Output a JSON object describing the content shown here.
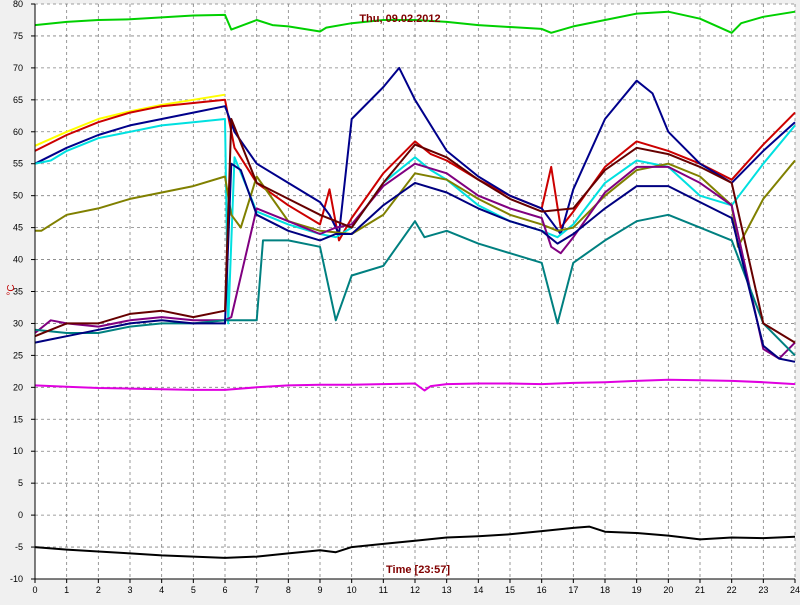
{
  "chart_data": {
    "type": "line",
    "title": "Thu, 09.02.2012",
    "xlabel": "Time [23:57]",
    "ylabel": "°C",
    "xlim": [
      0,
      24
    ],
    "ylim": [
      -10,
      80
    ],
    "x_ticks": [
      0,
      1,
      2,
      3,
      4,
      5,
      6,
      7,
      8,
      9,
      10,
      11,
      12,
      13,
      14,
      15,
      16,
      17,
      18,
      19,
      20,
      21,
      22,
      23,
      24
    ],
    "y_ticks": [
      -10,
      -5,
      0,
      5,
      10,
      15,
      20,
      25,
      30,
      35,
      40,
      45,
      50,
      55,
      60,
      65,
      70,
      75,
      80
    ],
    "grid": true,
    "series": [
      {
        "color": "#00d000",
        "x": [
          0,
          1,
          2,
          3,
          4,
          5,
          6,
          6.2,
          7,
          7.5,
          8,
          9,
          9.2,
          10,
          11,
          12,
          13,
          14,
          15,
          16,
          16.3,
          17,
          18,
          19,
          20,
          21,
          22,
          22.3,
          23,
          24
        ],
        "y": [
          76.7,
          77.2,
          77.5,
          77.6,
          77.9,
          78.2,
          78.3,
          76,
          77.5,
          76.7,
          76.5,
          75.7,
          76.3,
          77,
          77.5,
          77.5,
          77.2,
          76.7,
          76.4,
          76.1,
          75.5,
          76.5,
          77.5,
          78.5,
          78.8,
          77.7,
          75.5,
          77,
          78,
          78.8
        ]
      },
      {
        "color": "#ffff00",
        "x": [
          0,
          1,
          2,
          3,
          4,
          5,
          6
        ],
        "y": [
          57.8,
          60,
          62,
          63.2,
          64.2,
          65,
          65.8
        ]
      },
      {
        "color": "#cc0000",
        "x": [
          0,
          1,
          2,
          3,
          4,
          5,
          6,
          6.3,
          7,
          8,
          9,
          9.3,
          9.6,
          10,
          11,
          12,
          12.5,
          13,
          14,
          15,
          16,
          16.3,
          16.6,
          17,
          18,
          19,
          20,
          21,
          22,
          23,
          24
        ],
        "y": [
          57,
          59.5,
          61.5,
          63,
          64,
          64.5,
          65,
          57.5,
          52,
          48.5,
          45.5,
          51,
          43,
          46.5,
          53.5,
          58.5,
          56.5,
          55.5,
          52.5,
          50,
          48,
          54.5,
          45,
          47.5,
          54.5,
          58.5,
          57,
          55,
          52.5,
          58,
          63
        ]
      },
      {
        "color": "#00008b",
        "x": [
          0,
          1,
          2,
          3,
          4,
          5,
          6,
          6.3,
          7,
          8,
          9,
          9.3,
          9.6,
          10,
          11,
          11.5,
          12,
          13,
          14,
          15,
          16,
          16.3,
          16.6,
          17,
          18,
          19,
          19.5,
          20,
          21,
          22,
          23,
          24
        ],
        "y": [
          55,
          57.5,
          59.5,
          61,
          62,
          63,
          64,
          60,
          55,
          52,
          49,
          47,
          44,
          62,
          67,
          70,
          65,
          57,
          53,
          50,
          48,
          46,
          44,
          51,
          62,
          68,
          66,
          60,
          55,
          52,
          57,
          61.5
        ]
      },
      {
        "color": "#00e0e0",
        "x": [
          0,
          0.5,
          1,
          2,
          3,
          4,
          5,
          6,
          6.1,
          6.3,
          7,
          8,
          9,
          9.5,
          10,
          11,
          12,
          12.5,
          13,
          14,
          15,
          16,
          16.5,
          17,
          18,
          19,
          20,
          21,
          22,
          23,
          24
        ],
        "y": [
          55,
          55.5,
          57,
          59,
          60,
          61,
          61.5,
          62,
          30,
          56,
          47.5,
          45.5,
          44,
          43.5,
          45,
          52,
          56,
          54,
          52.5,
          48.5,
          46,
          44.5,
          43.5,
          45.5,
          52,
          55.5,
          54.5,
          50,
          48.5,
          55,
          61
        ]
      },
      {
        "color": "#808000",
        "x": [
          0,
          0.2,
          1,
          2,
          3,
          4,
          5,
          6,
          6.2,
          6.5,
          7,
          8,
          9,
          10,
          11,
          12,
          13,
          14,
          15,
          16,
          16.5,
          17,
          18,
          19,
          20,
          21,
          22,
          22.2,
          23,
          24
        ],
        "y": [
          44.5,
          44.5,
          47,
          48,
          49.5,
          50.5,
          51.5,
          53,
          47,
          45,
          53,
          46,
          44.5,
          44,
          47,
          53.5,
          52.5,
          49.5,
          47,
          45.5,
          44.5,
          45,
          50,
          54,
          55,
          53,
          48.5,
          42,
          49.5,
          55.5
        ]
      },
      {
        "color": "#800080",
        "x": [
          0,
          0.5,
          1,
          2,
          3,
          4,
          5,
          6,
          6.2,
          7,
          8,
          9,
          9.5,
          10,
          11,
          12,
          13,
          14,
          15,
          16,
          16.3,
          16.6,
          17,
          18,
          19,
          20,
          21,
          22,
          23,
          23.5,
          24
        ],
        "y": [
          28.5,
          30.5,
          30,
          29.5,
          30.5,
          31,
          30.5,
          30.5,
          31,
          48,
          46,
          44,
          45,
          45.5,
          51.5,
          55,
          53.5,
          50,
          48,
          46.5,
          42,
          41,
          43.5,
          50.5,
          54.5,
          54.5,
          52,
          48.5,
          26,
          24.5,
          27
        ]
      },
      {
        "color": "#008080",
        "x": [
          0,
          1,
          2,
          3,
          4,
          5,
          6,
          7,
          7.2,
          8,
          9,
          9.5,
          10,
          11,
          12,
          12.3,
          13,
          14,
          15,
          16,
          16.5,
          17,
          18,
          19,
          20,
          21,
          22,
          23,
          24
        ],
        "y": [
          29,
          28.5,
          28.5,
          29.5,
          30,
          30,
          30.5,
          30.5,
          43,
          43,
          42,
          30.5,
          37.5,
          39,
          46,
          43.5,
          44.5,
          42.5,
          41,
          39.5,
          30,
          39.5,
          43,
          46,
          47,
          45,
          43,
          30,
          25
        ]
      },
      {
        "color": "#000080",
        "x": [
          0,
          0.5,
          1,
          2,
          3,
          4,
          5,
          6,
          6.2,
          6.5,
          7,
          8,
          9,
          9.5,
          10,
          11,
          12,
          13,
          14,
          15,
          16,
          16.5,
          17,
          18,
          19,
          20,
          21,
          22,
          23,
          23.5,
          24
        ],
        "y": [
          27,
          27.5,
          28,
          29,
          30,
          30.5,
          30,
          30,
          55,
          54,
          47,
          44.5,
          43,
          44,
          44,
          48.5,
          52,
          50.5,
          48,
          46,
          44.5,
          42.5,
          44,
          48,
          51.5,
          51.5,
          49,
          46.5,
          26.5,
          24.5,
          24
        ]
      },
      {
        "color": "#660000",
        "x": [
          0,
          0.5,
          1,
          2,
          3,
          4,
          5,
          6,
          6.2,
          7,
          8,
          9,
          10,
          11,
          12,
          13,
          14,
          15,
          16,
          17,
          18,
          19,
          20,
          21,
          22,
          23,
          24
        ],
        "y": [
          28,
          29,
          30,
          30,
          31.5,
          32,
          31,
          32,
          62,
          52,
          49.5,
          47,
          45,
          52,
          58,
          56,
          52.5,
          49.5,
          47.5,
          48,
          54,
          57.5,
          56.5,
          54.5,
          52,
          30,
          27
        ]
      },
      {
        "color": "#e000e0",
        "x": [
          0,
          1,
          2,
          3,
          4,
          5,
          6,
          7,
          8,
          9,
          10,
          11,
          12,
          12.3,
          12.5,
          13,
          14,
          15,
          16,
          17,
          18,
          19,
          20,
          21,
          22,
          23,
          24
        ],
        "y": [
          20.3,
          20.1,
          19.9,
          19.8,
          19.7,
          19.6,
          19.6,
          20,
          20.3,
          20.4,
          20.4,
          20.5,
          20.6,
          19.5,
          20.2,
          20.5,
          20.6,
          20.6,
          20.5,
          20.7,
          20.8,
          21,
          21.2,
          21.1,
          21,
          20.8,
          20.5
        ]
      },
      {
        "color": "#000000",
        "x": [
          0,
          1,
          2,
          3,
          4,
          5,
          6,
          7,
          8,
          9,
          9.5,
          10,
          11,
          12,
          13,
          14,
          15,
          16,
          17,
          17.5,
          18,
          19,
          20,
          21,
          22,
          23,
          24
        ],
        "y": [
          -5,
          -5.4,
          -5.7,
          -6,
          -6.3,
          -6.5,
          -6.7,
          -6.5,
          -6,
          -5.5,
          -5.8,
          -5,
          -4.5,
          -4,
          -3.5,
          -3.3,
          -3,
          -2.5,
          -2,
          -1.8,
          -2.6,
          -2.8,
          -3.2,
          -3.8,
          -3.5,
          -3.6,
          -3.4
        ]
      }
    ]
  }
}
